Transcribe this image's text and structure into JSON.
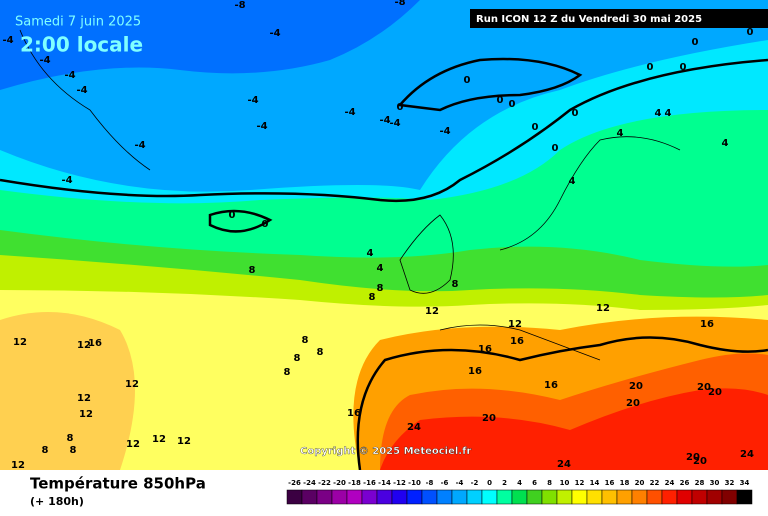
{
  "header": {
    "date": "Samedi 7 juin 2025",
    "time": "2:00 locale",
    "run": "Run ICON 12 Z du Vendredi 30 mai 2025"
  },
  "copyright": "Copyright © 2025 Meteociel.fr",
  "footer": {
    "title": "Température 850hPa",
    "lead": "(+ 180h)"
  },
  "scale": {
    "ticks": [
      -26,
      -24,
      -22,
      -20,
      -18,
      -16,
      -14,
      -12,
      -10,
      -8,
      -6,
      -4,
      -2,
      0,
      2,
      4,
      6,
      8,
      10,
      12,
      14,
      16,
      18,
      20,
      22,
      24,
      26,
      28,
      30,
      32,
      34
    ],
    "colors": [
      "#3b0042",
      "#5a0063",
      "#7a0085",
      "#9b00a6",
      "#b000c0",
      "#7a00d0",
      "#4a00e0",
      "#2000f0",
      "#0020ff",
      "#0050ff",
      "#0080ff",
      "#00a8ff",
      "#00d0ff",
      "#00ffff",
      "#00ffa0",
      "#00e050",
      "#40d020",
      "#80e000",
      "#c0f000",
      "#ffff00",
      "#ffe000",
      "#ffc000",
      "#ffa000",
      "#ff8000",
      "#ff5000",
      "#ff2000",
      "#e00000",
      "#c00000",
      "#a00000",
      "#800000",
      "#000000"
    ]
  },
  "contour_labels": [
    -8,
    -8,
    -4,
    -4,
    -4,
    -4,
    -4,
    -4,
    -4,
    -4,
    -4,
    -4,
    -4,
    -4,
    -4,
    0,
    0,
    0,
    0,
    0,
    0,
    0,
    0,
    0,
    0,
    0,
    0,
    0,
    4,
    4,
    4,
    4,
    4,
    4,
    4,
    8,
    8,
    8,
    8,
    8,
    8,
    8,
    8,
    12,
    12,
    12,
    12,
    12,
    12,
    12,
    12,
    12,
    12,
    12,
    12,
    16,
    16,
    16,
    16,
    16,
    16,
    16,
    20,
    20,
    20,
    20,
    20,
    24,
    24,
    24,
    20,
    20,
    8,
    8,
    8
  ]
}
